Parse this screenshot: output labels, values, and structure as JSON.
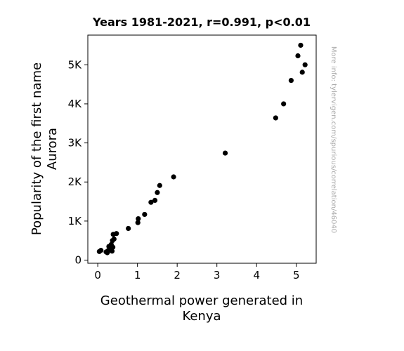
{
  "chart_data": {
    "type": "scatter",
    "title": "Years 1981-2021, r=0.991, p<0.01",
    "xlabel_lines": [
      "Geothermal power generated in",
      "Kenya"
    ],
    "ylabel_lines": [
      "Popularity of the first name",
      "Aurora"
    ],
    "xlim": [
      -0.25,
      5.5
    ],
    "ylim": [
      -80,
      5760
    ],
    "x_ticks": [
      {
        "value": 0,
        "label": "0"
      },
      {
        "value": 1,
        "label": "1"
      },
      {
        "value": 2,
        "label": "2"
      },
      {
        "value": 3,
        "label": "3"
      },
      {
        "value": 4,
        "label": "4"
      },
      {
        "value": 5,
        "label": "5"
      }
    ],
    "y_ticks": [
      {
        "value": 0,
        "label": "0"
      },
      {
        "value": 1000,
        "label": "1K"
      },
      {
        "value": 2000,
        "label": "2K"
      },
      {
        "value": 3000,
        "label": "3K"
      },
      {
        "value": 4000,
        "label": "4K"
      },
      {
        "value": 5000,
        "label": "5K"
      }
    ],
    "grid": false,
    "marker_color": "#000000",
    "points": [
      {
        "x": 0.04,
        "y": 220
      },
      {
        "x": 0.08,
        "y": 250
      },
      {
        "x": 0.21,
        "y": 210
      },
      {
        "x": 0.24,
        "y": 190
      },
      {
        "x": 0.26,
        "y": 240
      },
      {
        "x": 0.28,
        "y": 350
      },
      {
        "x": 0.31,
        "y": 280
      },
      {
        "x": 0.33,
        "y": 300
      },
      {
        "x": 0.34,
        "y": 400
      },
      {
        "x": 0.36,
        "y": 230
      },
      {
        "x": 0.37,
        "y": 500
      },
      {
        "x": 0.38,
        "y": 330
      },
      {
        "x": 0.39,
        "y": 660
      },
      {
        "x": 0.41,
        "y": 540
      },
      {
        "x": 0.47,
        "y": 680
      },
      {
        "x": 0.77,
        "y": 810
      },
      {
        "x": 1.01,
        "y": 960
      },
      {
        "x": 1.02,
        "y": 1060
      },
      {
        "x": 1.18,
        "y": 1170
      },
      {
        "x": 1.34,
        "y": 1480
      },
      {
        "x": 1.44,
        "y": 1530
      },
      {
        "x": 1.5,
        "y": 1730
      },
      {
        "x": 1.56,
        "y": 1910
      },
      {
        "x": 1.91,
        "y": 2130
      },
      {
        "x": 3.21,
        "y": 2740
      },
      {
        "x": 4.48,
        "y": 3640
      },
      {
        "x": 4.68,
        "y": 4000
      },
      {
        "x": 4.87,
        "y": 4600
      },
      {
        "x": 5.04,
        "y": 5230
      },
      {
        "x": 5.11,
        "y": 5500
      },
      {
        "x": 5.15,
        "y": 4810
      },
      {
        "x": 5.22,
        "y": 5000
      }
    ]
  },
  "watermark": "More info: tylervigen.com/spurious/correlation/46040"
}
